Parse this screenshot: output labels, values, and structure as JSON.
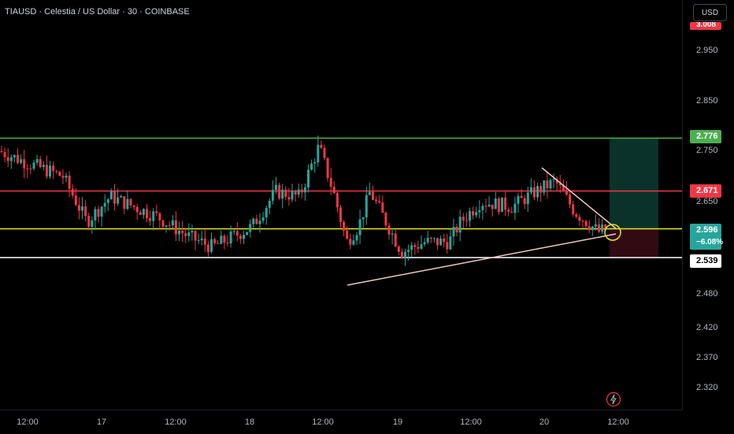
{
  "header": {
    "title": "TIAUSD · Celestia / US Dollar · 30 · COINBASE",
    "currency": "USD"
  },
  "price_axis": {
    "ticks": [
      "2.950",
      "2.850",
      "2.750",
      "2.650",
      "2.480",
      "2.420",
      "2.370",
      "2.320"
    ],
    "labels": {
      "top_partial": "3.008",
      "green_line": "2.776",
      "red_line": "2.671",
      "current": "2.596",
      "change_pct": "−6.08%",
      "white_line": "2.539"
    }
  },
  "time_axis": {
    "ticks": [
      "12:00",
      "17",
      "12:00",
      "18",
      "12:00",
      "19",
      "12:00",
      "20",
      "12:00"
    ]
  },
  "colors": {
    "up": "#26a69a",
    "down": "#f23645",
    "green_line": "#4caf50",
    "red_line": "#f23645",
    "yellow_line": "#e8e81a",
    "white_line": "#ffffff",
    "trendline": "#f4c6c6"
  },
  "icons": {
    "flash": "lightning-icon"
  }
}
